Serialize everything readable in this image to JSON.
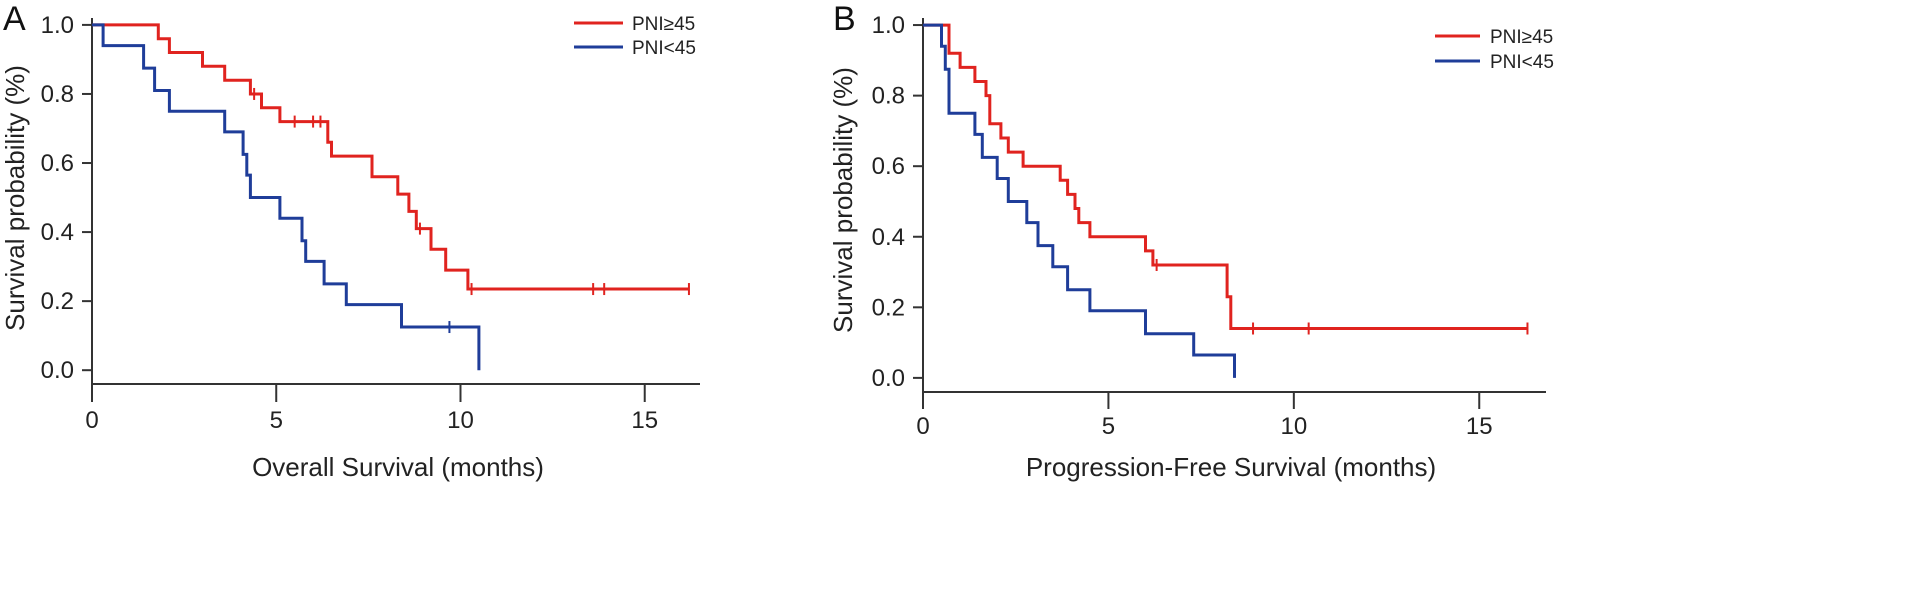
{
  "chart_data": [
    {
      "type": "line",
      "panel_label": "A",
      "xlabel": "Overall Survival (months)",
      "ylabel": "Survival probability (%)",
      "xlim": [
        0,
        16.5
      ],
      "ylim": [
        -0.04,
        1.02
      ],
      "xticks": [
        0,
        5,
        10,
        15
      ],
      "yticks": [
        0.0,
        0.2,
        0.4,
        0.6,
        0.8,
        1.0
      ],
      "ytick_labels": [
        "0.0",
        "0.2",
        "0.4",
        "0.6",
        "0.8",
        "1.0"
      ],
      "legend": "top-right",
      "series": [
        {
          "name": "PNI≥45",
          "color": "#e0231f",
          "steps": [
            [
              0,
              1.0
            ],
            [
              1.8,
              0.96
            ],
            [
              2.1,
              0.92
            ],
            [
              3.0,
              0.88
            ],
            [
              3.6,
              0.84
            ],
            [
              4.3,
              0.8
            ],
            [
              4.6,
              0.76
            ],
            [
              5.1,
              0.72
            ],
            [
              6.4,
              0.66
            ],
            [
              6.5,
              0.62
            ],
            [
              7.6,
              0.56
            ],
            [
              8.3,
              0.51
            ],
            [
              8.6,
              0.46
            ],
            [
              8.8,
              0.41
            ],
            [
              9.2,
              0.35
            ],
            [
              9.6,
              0.29
            ],
            [
              10.2,
              0.235
            ],
            [
              16.2,
              0.235
            ]
          ],
          "censor": [
            4.4,
            5.5,
            6.0,
            6.2,
            8.9,
            10.3,
            13.6,
            13.9,
            16.2
          ]
        },
        {
          "name": "PNI<45",
          "color": "#1f3d99",
          "steps": [
            [
              0,
              1.0
            ],
            [
              0.3,
              0.94
            ],
            [
              1.4,
              0.875
            ],
            [
              1.7,
              0.81
            ],
            [
              2.1,
              0.75
            ],
            [
              3.6,
              0.69
            ],
            [
              4.1,
              0.625
            ],
            [
              4.2,
              0.565
            ],
            [
              4.3,
              0.5
            ],
            [
              5.1,
              0.44
            ],
            [
              5.7,
              0.375
            ],
            [
              5.8,
              0.315
            ],
            [
              6.3,
              0.25
            ],
            [
              6.9,
              0.19
            ],
            [
              8.4,
              0.125
            ],
            [
              10.5,
              0.0
            ]
          ],
          "censor": [
            9.7
          ]
        }
      ]
    },
    {
      "type": "line",
      "panel_label": "B",
      "xlabel": "Progression-Free Survival (months)",
      "ylabel": "Survival probability (%)",
      "xlim": [
        0,
        16.8
      ],
      "ylim": [
        -0.04,
        1.02
      ],
      "xticks": [
        0,
        5,
        10,
        15
      ],
      "yticks": [
        0.0,
        0.2,
        0.4,
        0.6,
        0.8,
        1.0
      ],
      "ytick_labels": [
        "0.0",
        "0.2",
        "0.4",
        "0.6",
        "0.8",
        "1.0"
      ],
      "legend": "top-right",
      "series": [
        {
          "name": "PNI≥45",
          "color": "#e0231f",
          "steps": [
            [
              0,
              1.0
            ],
            [
              0.7,
              0.92
            ],
            [
              1.0,
              0.88
            ],
            [
              1.4,
              0.84
            ],
            [
              1.7,
              0.8
            ],
            [
              1.8,
              0.72
            ],
            [
              2.1,
              0.68
            ],
            [
              2.3,
              0.64
            ],
            [
              2.7,
              0.6
            ],
            [
              3.7,
              0.56
            ],
            [
              3.9,
              0.52
            ],
            [
              4.1,
              0.48
            ],
            [
              4.2,
              0.44
            ],
            [
              4.5,
              0.4
            ],
            [
              6.0,
              0.36
            ],
            [
              6.2,
              0.32
            ],
            [
              8.2,
              0.23
            ],
            [
              8.3,
              0.14
            ],
            [
              16.3,
              0.14
            ]
          ],
          "censor": [
            6.3,
            8.9,
            10.4,
            16.3
          ]
        },
        {
          "name": "PNI<45",
          "color": "#1f3d99",
          "steps": [
            [
              0,
              1.0
            ],
            [
              0.5,
              0.94
            ],
            [
              0.6,
              0.875
            ],
            [
              0.7,
              0.75
            ],
            [
              1.4,
              0.69
            ],
            [
              1.6,
              0.625
            ],
            [
              2.0,
              0.565
            ],
            [
              2.3,
              0.5
            ],
            [
              2.8,
              0.44
            ],
            [
              3.1,
              0.375
            ],
            [
              3.5,
              0.315
            ],
            [
              3.9,
              0.25
            ],
            [
              4.5,
              0.19
            ],
            [
              6.0,
              0.125
            ],
            [
              7.3,
              0.065
            ],
            [
              8.4,
              0.0
            ]
          ],
          "censor": []
        }
      ]
    }
  ]
}
